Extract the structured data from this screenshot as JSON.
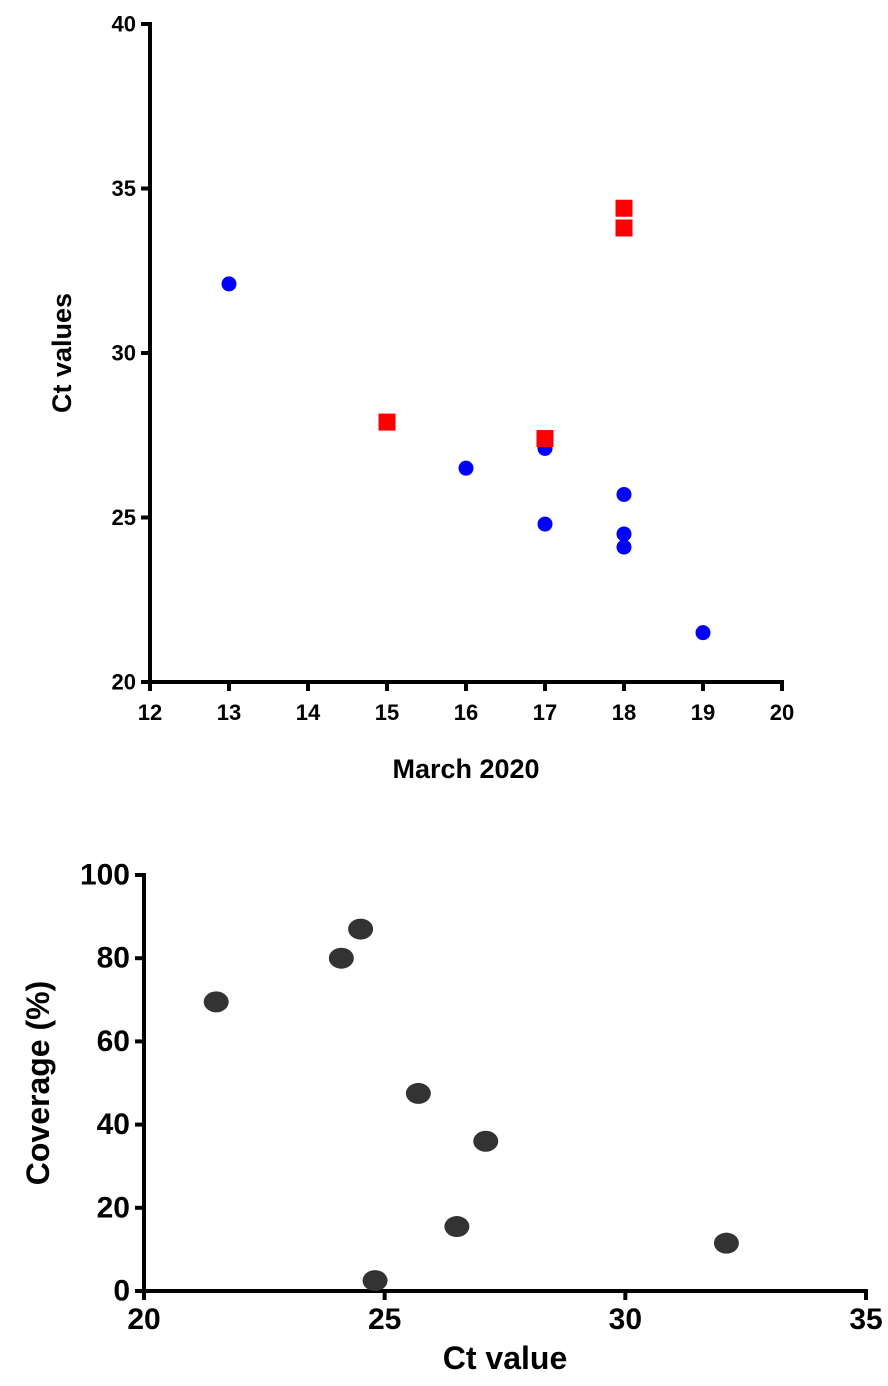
{
  "chart_data": [
    {
      "type": "scatter",
      "xlabel": "March 2020",
      "ylabel": "Ct values",
      "xlim": [
        12,
        20
      ],
      "ylim": [
        20,
        40
      ],
      "xticks": [
        12,
        13,
        14,
        15,
        16,
        17,
        18,
        19,
        20
      ],
      "yticks": [
        20,
        25,
        30,
        35,
        40
      ],
      "grid": false,
      "series": [
        {
          "color": "#0000ff",
          "marker": "circle",
          "points": [
            {
              "x": 13,
              "y": 32.1
            },
            {
              "x": 16,
              "y": 26.5
            },
            {
              "x": 17,
              "y": 27.1
            },
            {
              "x": 17,
              "y": 24.8
            },
            {
              "x": 18,
              "y": 25.7
            },
            {
              "x": 18,
              "y": 24.5
            },
            {
              "x": 18,
              "y": 24.1
            },
            {
              "x": 19,
              "y": 21.5
            }
          ]
        },
        {
          "color": "#ff0000",
          "marker": "square",
          "points": [
            {
              "x": 15,
              "y": 27.9
            },
            {
              "x": 17,
              "y": 27.4
            },
            {
              "x": 18,
              "y": 34.4
            },
            {
              "x": 18,
              "y": 33.8
            }
          ]
        }
      ]
    },
    {
      "type": "scatter",
      "xlabel": "Ct value",
      "ylabel": "Coverage (%)",
      "xlim": [
        20,
        35
      ],
      "ylim": [
        0,
        100
      ],
      "xticks": [
        20,
        25,
        30,
        35
      ],
      "yticks": [
        0,
        20,
        40,
        60,
        80,
        100
      ],
      "grid": false,
      "series": [
        {
          "color": "#333333",
          "marker": "circle",
          "points": [
            {
              "x": 21.5,
              "y": 69.5
            },
            {
              "x": 24.1,
              "y": 80
            },
            {
              "x": 24.5,
              "y": 87
            },
            {
              "x": 25.7,
              "y": 47.5
            },
            {
              "x": 27.1,
              "y": 36
            },
            {
              "x": 26.5,
              "y": 15.5
            },
            {
              "x": 24.8,
              "y": 2.5
            },
            {
              "x": 32.1,
              "y": 11.5
            }
          ]
        }
      ]
    }
  ]
}
